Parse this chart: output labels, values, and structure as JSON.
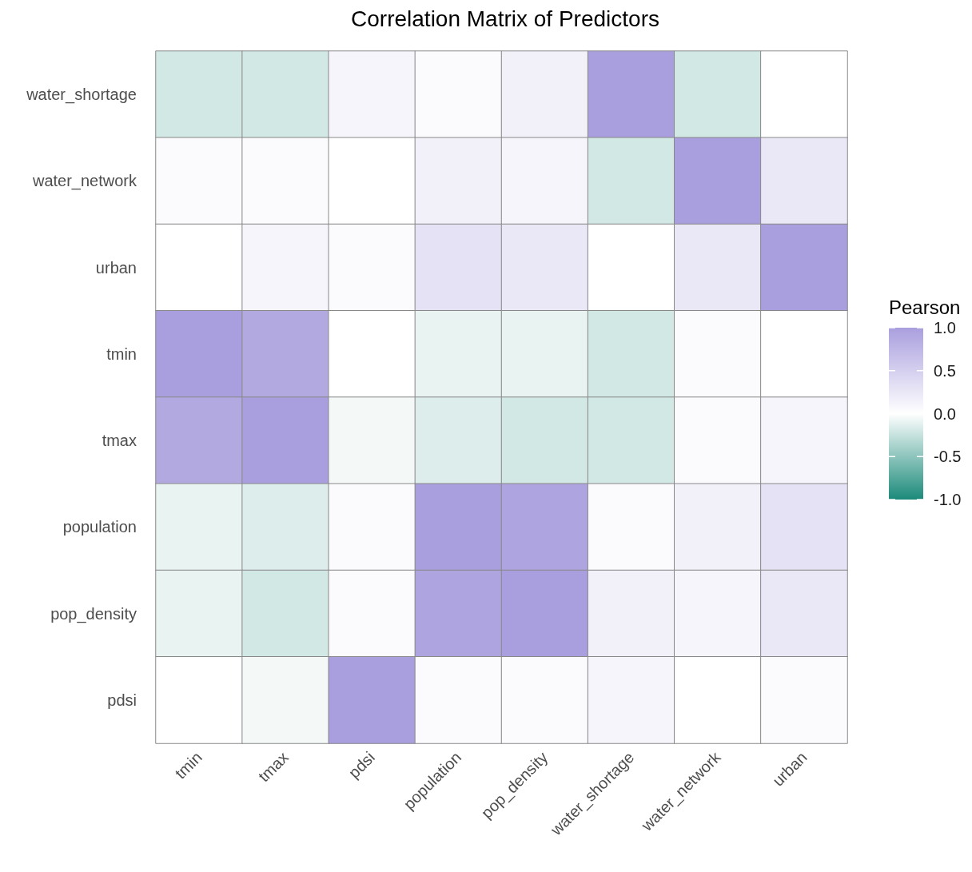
{
  "chart_data": {
    "type": "heatmap",
    "title": "Correlation Matrix of Predictors",
    "clabel": "Pearson",
    "categories": [
      "tmin",
      "tmax",
      "pdsi",
      "population",
      "pop_density",
      "water_shortage",
      "water_network",
      "urban"
    ],
    "y_categories": [
      "water_shortage",
      "water_network",
      "urban",
      "tmin",
      "tmax",
      "population",
      "pop_density",
      "pdsi"
    ],
    "cells": [
      [
        -0.2,
        -0.2,
        0.1,
        0.05,
        0.15,
        1,
        -0.2,
        0
      ],
      [
        0.05,
        0.05,
        0,
        0.15,
        0.1,
        -0.2,
        1,
        0.25
      ],
      [
        0,
        0.1,
        0.05,
        0.3,
        0.25,
        0,
        0.25,
        1
      ],
      [
        1,
        0.9,
        0,
        -0.1,
        -0.1,
        -0.2,
        0.05,
        0
      ],
      [
        0.9,
        1,
        -0.05,
        -0.15,
        -0.2,
        -0.2,
        0.05,
        0.1
      ],
      [
        -0.1,
        -0.15,
        0.05,
        1,
        0.95,
        0.05,
        0.15,
        0.3
      ],
      [
        -0.1,
        -0.2,
        0.05,
        0.95,
        1,
        0.15,
        0.1,
        0.25
      ],
      [
        0,
        -0.05,
        1,
        0.05,
        0.05,
        0.1,
        0,
        0.05
      ]
    ],
    "colors": [
      "#1b8a7a",
      "#ffffff",
      "#aa9fde"
    ],
    "clim": [
      -1,
      1
    ],
    "cticks": [
      {
        "value": 1,
        "label": "1.0"
      },
      {
        "value": 0.5,
        "label": "0.5"
      },
      {
        "value": 0,
        "label": "0.0"
      },
      {
        "value": -0.5,
        "label": "-0.5"
      },
      {
        "value": -1,
        "label": "-1.0"
      }
    ]
  }
}
